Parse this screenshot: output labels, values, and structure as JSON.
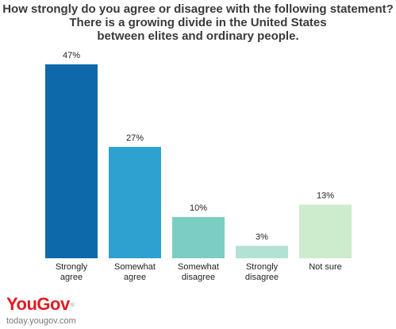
{
  "title_lines": [
    "How strongly do you agree or disagree with the following statement?",
    "There is a growing divide in the United States",
    "between elites and ordinary people."
  ],
  "brand": {
    "logo": "YouGov",
    "trademark": "®",
    "site": "today.yougov.com"
  },
  "chart_data": {
    "type": "bar",
    "title": "How strongly do you agree or disagree with the following statement? There is a growing divide in the United States between elites and ordinary people.",
    "categories": [
      [
        "Strongly",
        "agree"
      ],
      [
        "Somewhat",
        "agree"
      ],
      [
        "Somewhat",
        "disagree"
      ],
      [
        "Strongly",
        "disagree"
      ],
      [
        "Not sure"
      ]
    ],
    "values": [
      47,
      27,
      10,
      3,
      13
    ],
    "value_labels": [
      "47%",
      "27%",
      "10%",
      "3%",
      "13%"
    ],
    "colors": [
      "#0e69ab",
      "#2ea1d0",
      "#7ccdc4",
      "#b3e1d4",
      "#cdebcd"
    ],
    "ylim": [
      0,
      47
    ],
    "xlabel": "",
    "ylabel": "",
    "grid": false,
    "legend": "none"
  }
}
